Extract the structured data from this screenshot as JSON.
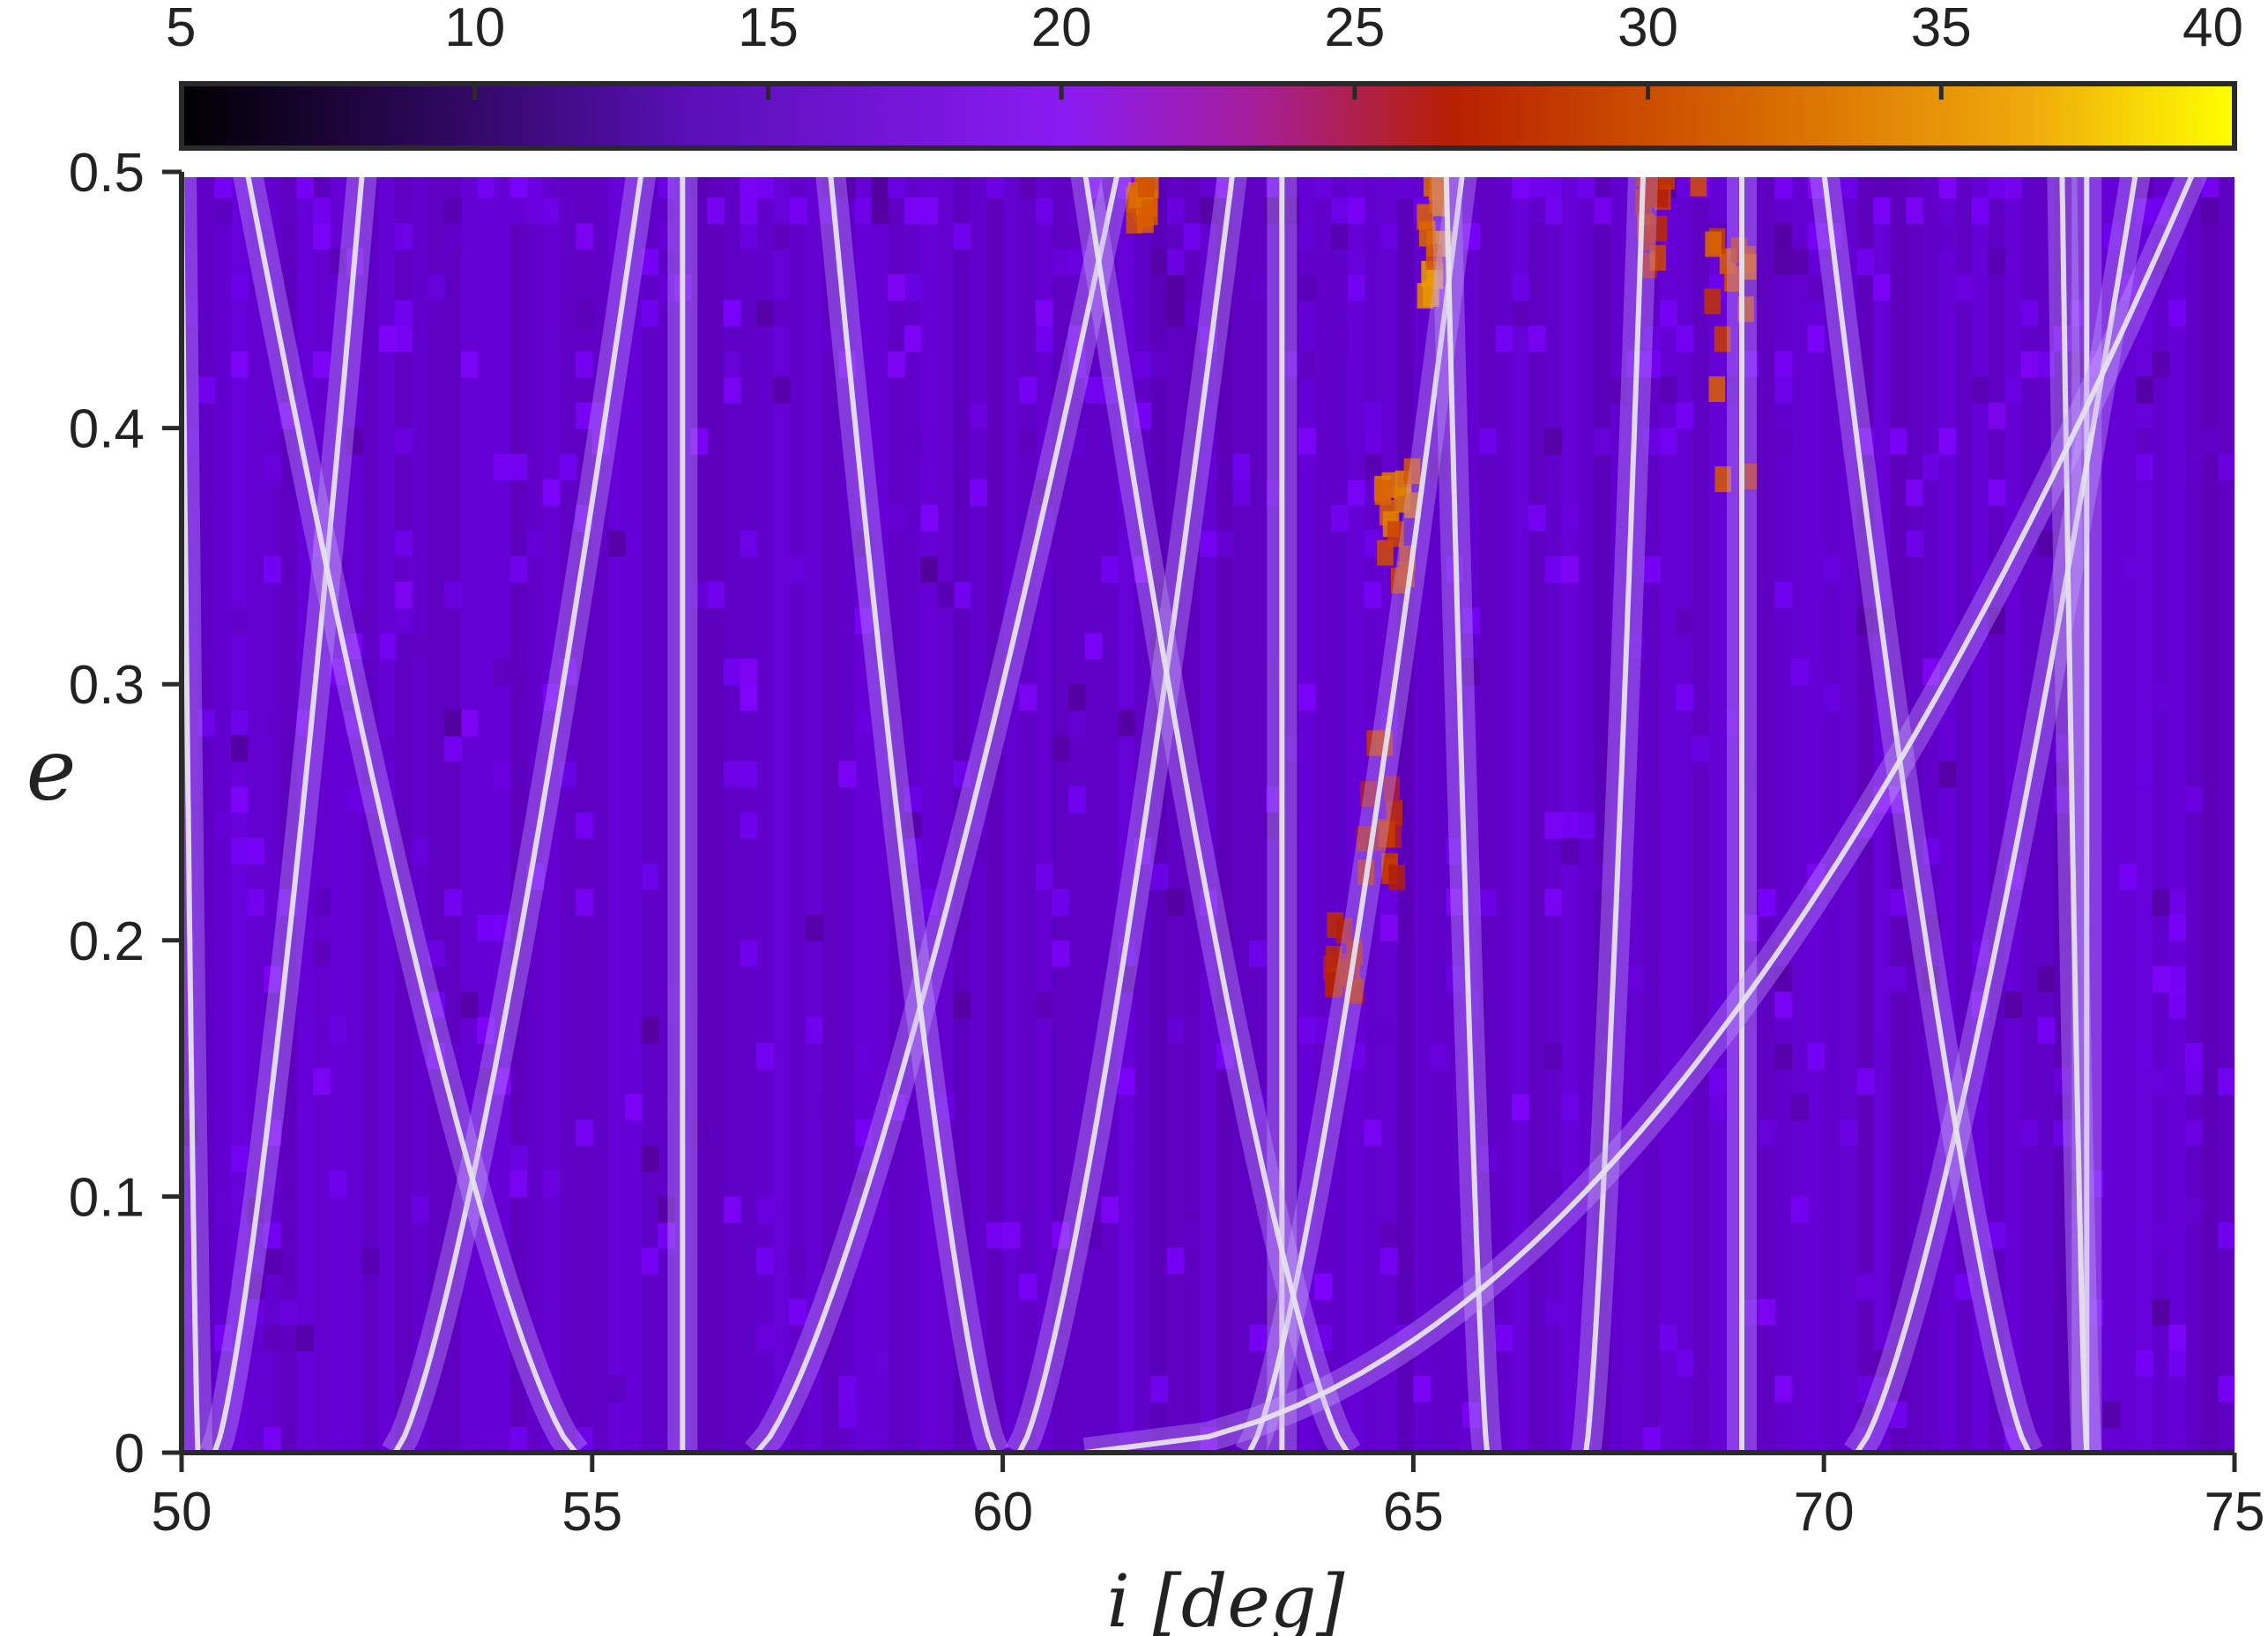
{
  "chart_data": {
    "type": "heatmap",
    "xlabel": "i [deg]",
    "ylabel": "e",
    "xlim": [
      50,
      75
    ],
    "ylim": [
      0,
      0.5
    ],
    "xticks": [
      "50",
      "55",
      "60",
      "65",
      "70",
      "75"
    ],
    "yticks": [
      "0",
      "0.1",
      "0.2",
      "0.3",
      "0.4",
      "0.5"
    ],
    "colorbar": {
      "range": [
        5,
        40
      ],
      "ticks": [
        "5",
        "10",
        "15",
        "20",
        "25",
        "30",
        "35",
        "40"
      ],
      "colormap": "gnuplot",
      "position": "top"
    },
    "background_level": 10,
    "hot_regions": [
      {
        "i_range": [
          61.6,
          61.8
        ],
        "e_range": [
          0.48,
          0.5
        ],
        "value": 30
      },
      {
        "i_range": [
          64.6,
          65.0
        ],
        "e_range": [
          0.34,
          0.39
        ],
        "value": 30
      },
      {
        "i_range": [
          64.3,
          64.8
        ],
        "e_range": [
          0.22,
          0.28
        ],
        "value": 24
      },
      {
        "i_range": [
          65.1,
          65.4
        ],
        "e_range": [
          0.45,
          0.5
        ],
        "value": 32
      },
      {
        "i_range": [
          67.8,
          68.1
        ],
        "e_range": [
          0.46,
          0.5
        ],
        "value": 25
      },
      {
        "i_range": [
          68.4,
          69.1
        ],
        "e_range": [
          0.37,
          0.5
        ],
        "value": 28
      },
      {
        "i_range": [
          64.0,
          64.3
        ],
        "e_range": [
          0.18,
          0.21
        ],
        "value": 22
      }
    ],
    "resonance_curves": [
      {
        "kind": "vertical",
        "i": 56.1
      },
      {
        "kind": "vertical",
        "i": 63.4
      },
      {
        "kind": "vertical",
        "i": 69.0
      },
      {
        "kind": "vertical",
        "i": 73.2
      },
      {
        "kind": "branch",
        "i0": 50.4,
        "i_at_top": 52.2
      },
      {
        "kind": "branch",
        "i0": 52.6,
        "i_at_top": 55.6
      },
      {
        "kind": "branch",
        "i0": 57.0,
        "i_at_top": 61.4
      },
      {
        "kind": "branch",
        "i0": 60.2,
        "i_at_top": 62.8
      },
      {
        "kind": "branch",
        "i0": 63.0,
        "i_at_top": 65.6
      },
      {
        "kind": "branch",
        "i0": 67.1,
        "i_at_top": 67.8
      },
      {
        "kind": "branch",
        "i0": 70.4,
        "i_at_top": 73.8
      },
      {
        "kind": "branch",
        "i0": 50.2,
        "i_at_top": 50.0
      },
      {
        "kind": "branch",
        "i0": 54.8,
        "i_at_top": 50.8
      },
      {
        "kind": "branch",
        "i0": 59.9,
        "i_at_top": 57.9
      },
      {
        "kind": "branch",
        "i0": 64.2,
        "i_at_top": 61.0
      },
      {
        "kind": "branch",
        "i0": 65.9,
        "i_at_top": 65.4
      },
      {
        "kind": "branch",
        "i0": 72.5,
        "i_at_top": 70.0
      },
      {
        "kind": "branch",
        "i0": 73.2,
        "i_at_top": 72.9
      },
      {
        "kind": "sqrt",
        "i0": 61.0,
        "i_end": 74.5
      }
    ]
  }
}
